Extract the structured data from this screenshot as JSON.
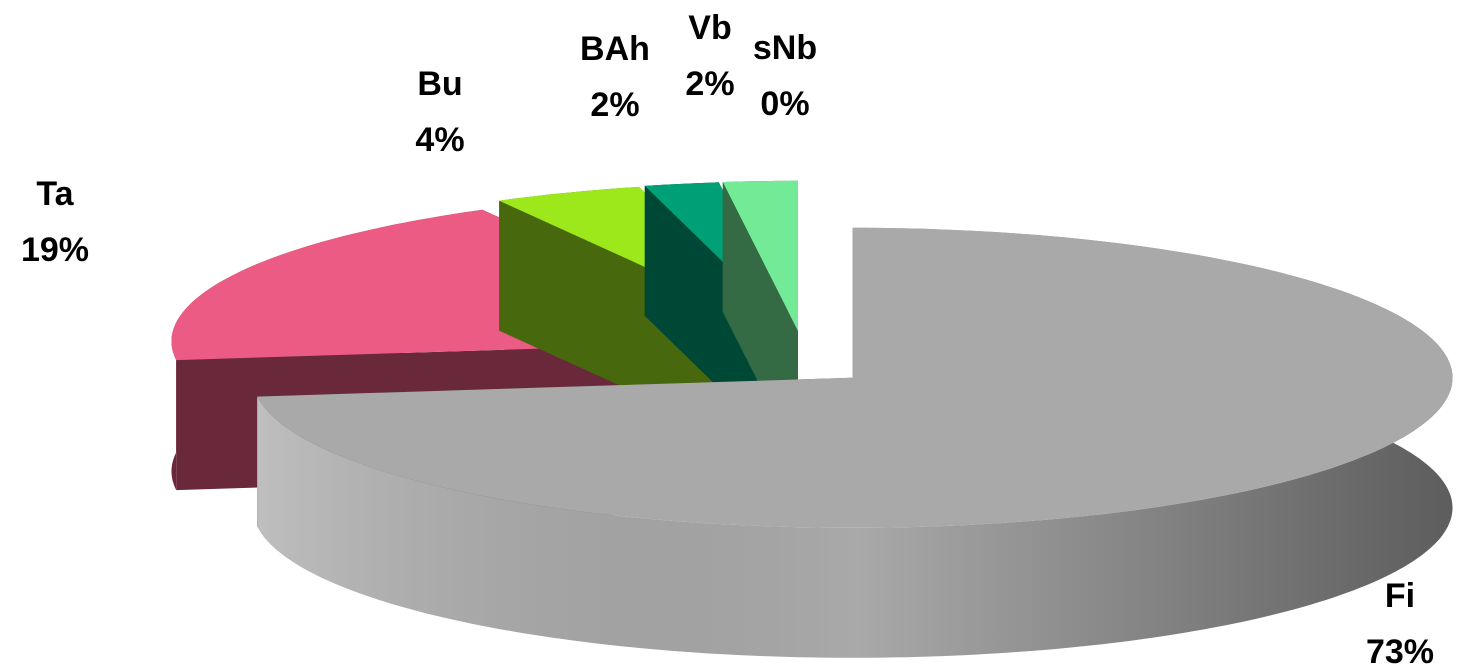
{
  "chart_data": {
    "type": "pie",
    "categories": [
      "Fi",
      "Ta",
      "Bu",
      "BAh",
      "Vb",
      "sNb"
    ],
    "values": [
      73,
      19,
      4,
      2,
      2,
      0
    ],
    "value_labels": [
      "73%",
      "19%",
      "4%",
      "2%",
      "2%",
      "0%"
    ],
    "colors": [
      "#a9a9a9",
      "#ec5b84",
      "#9de81a",
      "#00a077",
      "#73eb96",
      "#8b5a2b"
    ]
  }
}
